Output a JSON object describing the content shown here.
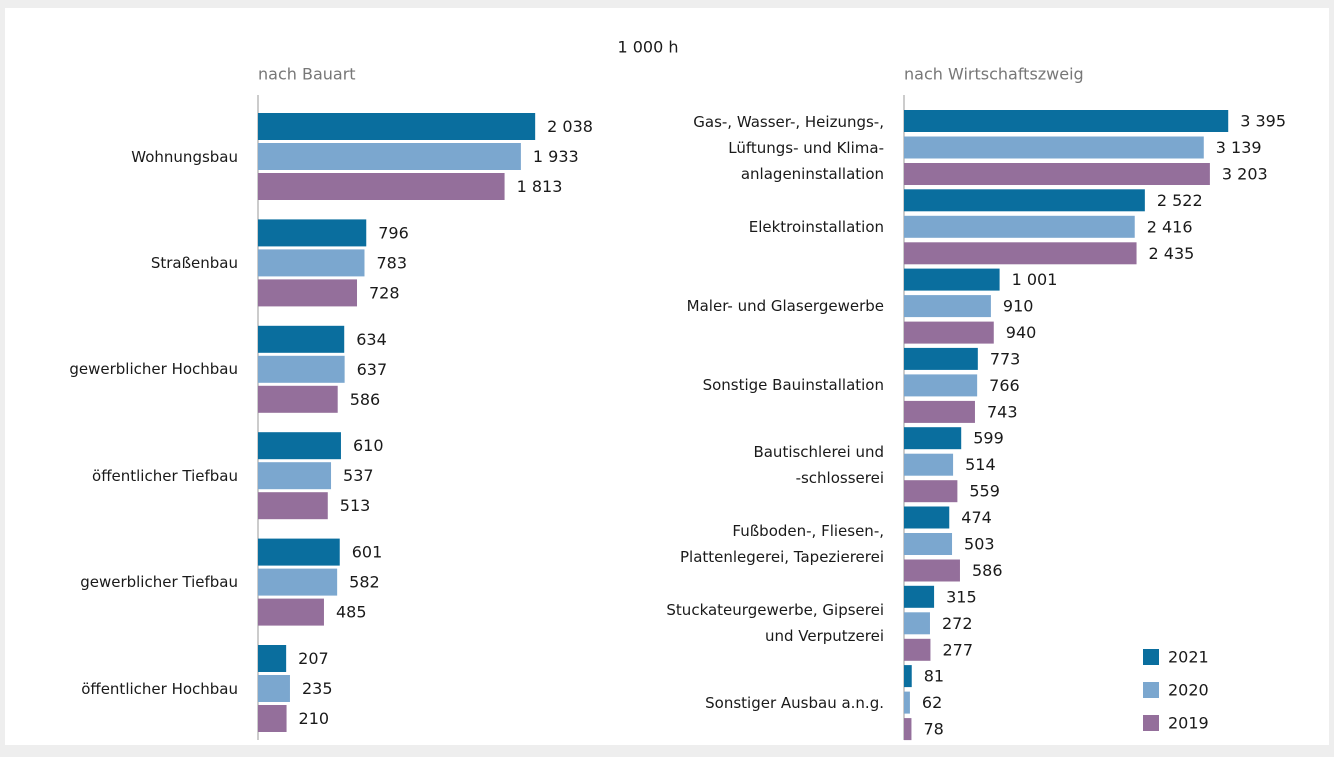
{
  "unit": "1 000 h",
  "chart_data": [
    {
      "type": "bar",
      "orientation": "horizontal",
      "subtitle": "nach Bauart",
      "categories": [
        "Wohnungsbau",
        "Straßenbau",
        "gewerblicher Hochbau",
        "öffentlicher Tiefbau",
        "gewerblicher Tiefbau",
        "öffentlicher Hochbau"
      ],
      "xlim": [
        0,
        2500
      ],
      "series": [
        {
          "color": "#0a6e9e",
          "values": [
            2038,
            796,
            634,
            610,
            601,
            207
          ],
          "value_labels": [
            "2 038",
            "796",
            "634",
            "610",
            "601",
            "207"
          ]
        },
        {
          "color": "#7ba7cf",
          "values": [
            1933,
            783,
            637,
            537,
            582,
            235
          ],
          "value_labels": [
            "1 933",
            "783",
            "637",
            "537",
            "582",
            "235"
          ]
        },
        {
          "color": "#946f9b",
          "values": [
            1813,
            728,
            586,
            513,
            485,
            210
          ],
          "value_labels": [
            "1 813",
            "728",
            "586",
            "513",
            "485",
            "210"
          ]
        }
      ]
    },
    {
      "type": "bar",
      "orientation": "horizontal",
      "subtitle": "nach Wirtschaftszweig",
      "categories": [
        "Gas-, Wasser-, Heizungs-,\nLüftungs- und Klima-\nanlageninstallation",
        "Elektroinstallation",
        "Maler- und Glasergewerbe",
        "Sonstige Bauinstallation",
        "Bautischlerei und\n-schlosserei",
        "Fußboden-, Fliesen-,\nPlattenlegerei, Tapeziererei",
        "Stuckateurgewerbe, Gipserei\nund Verputzerei",
        "Sonstiger Ausbau a.n.g."
      ],
      "xlim": [
        0,
        4000
      ],
      "legend": "lower right",
      "series": [
        {
          "name": "2021",
          "color": "#0a6e9e",
          "values": [
            3395,
            2522,
            1001,
            773,
            599,
            474,
            315,
            81
          ],
          "value_labels": [
            "3 395",
            "2 522",
            "1 001",
            "773",
            "599",
            "474",
            "315",
            "81"
          ]
        },
        {
          "name": "2020",
          "color": "#7ba7cf",
          "values": [
            3139,
            2416,
            910,
            766,
            514,
            503,
            272,
            62
          ],
          "value_labels": [
            "3 139",
            "2 416",
            "910",
            "766",
            "514",
            "503",
            "272",
            "62"
          ]
        },
        {
          "name": "2019",
          "color": "#946f9b",
          "values": [
            3203,
            2435,
            940,
            743,
            559,
            586,
            277,
            78
          ],
          "value_labels": [
            "3 203",
            "2 435",
            "940",
            "743",
            "559",
            "586",
            "277",
            "78"
          ]
        }
      ]
    }
  ]
}
